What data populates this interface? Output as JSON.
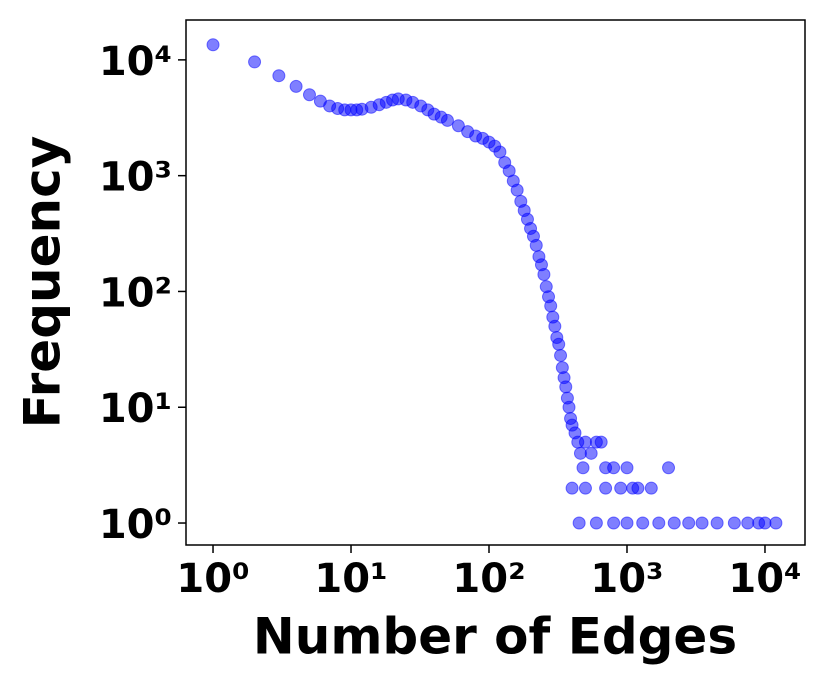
{
  "chart_data": {
    "type": "scatter",
    "x_label": "Number of Edges",
    "y_label": "Frequency",
    "log_x": true,
    "log_y": true,
    "xlim": [
      0.637,
      19500
    ],
    "ylim": [
      0.646,
      22100
    ],
    "xticks": [
      {
        "value": 1,
        "label": "10⁰"
      },
      {
        "value": 10,
        "label": "10¹"
      },
      {
        "value": 100,
        "label": "10²"
      },
      {
        "value": 1000,
        "label": "10³"
      },
      {
        "value": 10000,
        "label": "10⁴"
      }
    ],
    "yticks": [
      {
        "value": 1,
        "label": "10⁰"
      },
      {
        "value": 10,
        "label": "10¹"
      },
      {
        "value": 100,
        "label": "10²"
      },
      {
        "value": 1000,
        "label": "10³"
      },
      {
        "value": 10000,
        "label": "10⁴"
      }
    ],
    "series": [
      {
        "color": "#0000ff",
        "x": [
          1,
          2,
          3,
          4,
          5,
          6,
          7,
          8,
          9,
          10,
          11,
          12,
          14,
          16,
          18,
          20,
          22,
          25,
          28,
          32,
          36,
          40,
          45,
          50,
          60,
          70,
          80,
          90,
          100,
          110,
          120,
          130,
          140,
          150,
          160,
          170,
          180,
          190,
          200,
          210,
          220,
          230,
          240,
          250,
          260,
          270,
          280,
          290,
          300,
          310,
          320,
          330,
          340,
          350,
          360,
          370,
          380,
          390,
          400,
          420,
          440,
          460,
          480,
          500,
          550,
          600,
          650,
          700,
          800,
          900,
          1000,
          1200,
          1500,
          2000,
          400,
          500,
          700,
          1100,
          450,
          600,
          800,
          1000,
          1300,
          1700,
          2200,
          2800,
          3500,
          4500,
          6000,
          7500,
          9000,
          10000,
          12000
        ],
        "values": [
          13500,
          9600,
          7300,
          5900,
          5000,
          4400,
          4000,
          3800,
          3700,
          3700,
          3700,
          3750,
          3900,
          4100,
          4300,
          4500,
          4600,
          4500,
          4300,
          4000,
          3700,
          3400,
          3200,
          3000,
          2700,
          2400,
          2200,
          2100,
          1950,
          1800,
          1600,
          1300,
          1100,
          900,
          750,
          600,
          500,
          420,
          350,
          300,
          250,
          200,
          170,
          140,
          110,
          90,
          75,
          60,
          50,
          40,
          35,
          28,
          22,
          18,
          15,
          12,
          10,
          8,
          7,
          6,
          5,
          4,
          3,
          5,
          4,
          5,
          5,
          3,
          3,
          2,
          3,
          2,
          2,
          3,
          2,
          2,
          2,
          2,
          1,
          1,
          1,
          1,
          1,
          1,
          1,
          1,
          1,
          1,
          1,
          1,
          1,
          1,
          1
        ]
      }
    ]
  }
}
